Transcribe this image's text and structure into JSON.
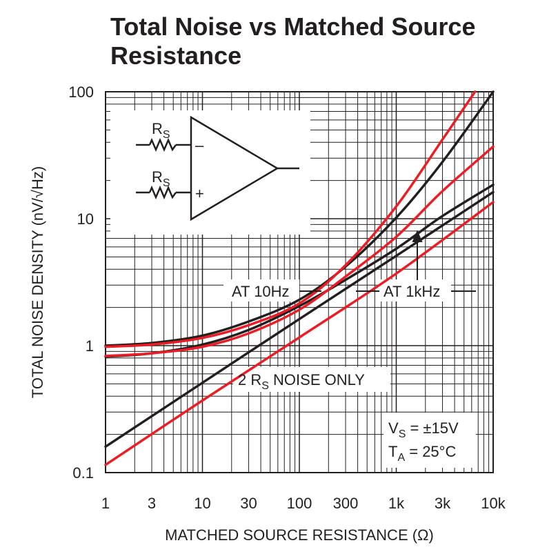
{
  "chart_data": {
    "type": "line",
    "title": "Total Noise vs Matched Source Resistance",
    "xlabel": "MATCHED SOURCE RESISTANCE (Ω)",
    "ylabel": "TOTAL NOISE DENSITY (nV/√Hz)",
    "x_scale": "log",
    "y_scale": "log",
    "xlim": [
      1,
      10000
    ],
    "ylim": [
      0.1,
      100
    ],
    "x_ticks": [
      1,
      3,
      10,
      30,
      100,
      300,
      1000,
      3000,
      10000
    ],
    "x_tick_labels": [
      "1",
      "3",
      "10",
      "30",
      "100",
      "300",
      "1k",
      "3k",
      "10k"
    ],
    "y_ticks": [
      0.1,
      1,
      10,
      100
    ],
    "y_tick_labels": [
      "0.1",
      "1",
      "10",
      "100"
    ],
    "grid": true,
    "series": [
      {
        "color": "#231f20",
        "x": [
          1,
          3,
          10,
          30,
          100,
          300,
          1000,
          3000,
          10000
        ],
        "y": [
          1.0,
          1.05,
          1.2,
          1.55,
          2.3,
          4.2,
          10.2,
          28,
          100
        ]
      },
      {
        "color": "#231f20",
        "x": [
          1,
          3,
          10,
          30,
          100,
          300,
          1000,
          3000,
          10000
        ],
        "y": [
          0.82,
          0.87,
          1.02,
          1.33,
          2.05,
          3.3,
          5.8,
          10.5,
          18.5
        ]
      },
      {
        "color": "#ed1c24",
        "x": [
          1,
          3,
          10,
          30,
          100,
          300,
          1000,
          3000,
          6500
        ],
        "y": [
          0.98,
          1.02,
          1.15,
          1.45,
          2.15,
          4.3,
          12.5,
          42,
          100
        ]
      },
      {
        "color": "#ed1c24",
        "x": [
          1,
          3,
          10,
          30,
          100,
          300,
          1000,
          3000,
          10000
        ],
        "y": [
          0.83,
          0.87,
          0.98,
          1.25,
          1.92,
          3.5,
          7.2,
          16.5,
          37
        ]
      },
      {
        "color": "#231f20",
        "x": [
          1,
          10,
          100,
          1000,
          10000
        ],
        "y": [
          0.16,
          0.51,
          1.62,
          5.1,
          16.2
        ]
      },
      {
        "color": "#ed1c24",
        "x": [
          1,
          10,
          100,
          1000,
          10000
        ],
        "y": [
          0.115,
          0.37,
          1.16,
          3.7,
          13.5
        ]
      }
    ],
    "annotations": {
      "at_10hz": "AT 10Hz",
      "at_1khz": "AT 1kHz",
      "rs_noise_prefix": "2 R",
      "rs_noise_sub": "S",
      "rs_noise_suffix": " NOISE ONLY",
      "vs_main": "V",
      "vs_sub": "S",
      "vs_rest": " = ±15V",
      "ta_main": "T",
      "ta_sub": "A",
      "ta_rest": " = 25°C"
    },
    "inset": {
      "resistor_main": "R",
      "resistor_sub": "S",
      "minus": "–",
      "plus": "+"
    }
  }
}
